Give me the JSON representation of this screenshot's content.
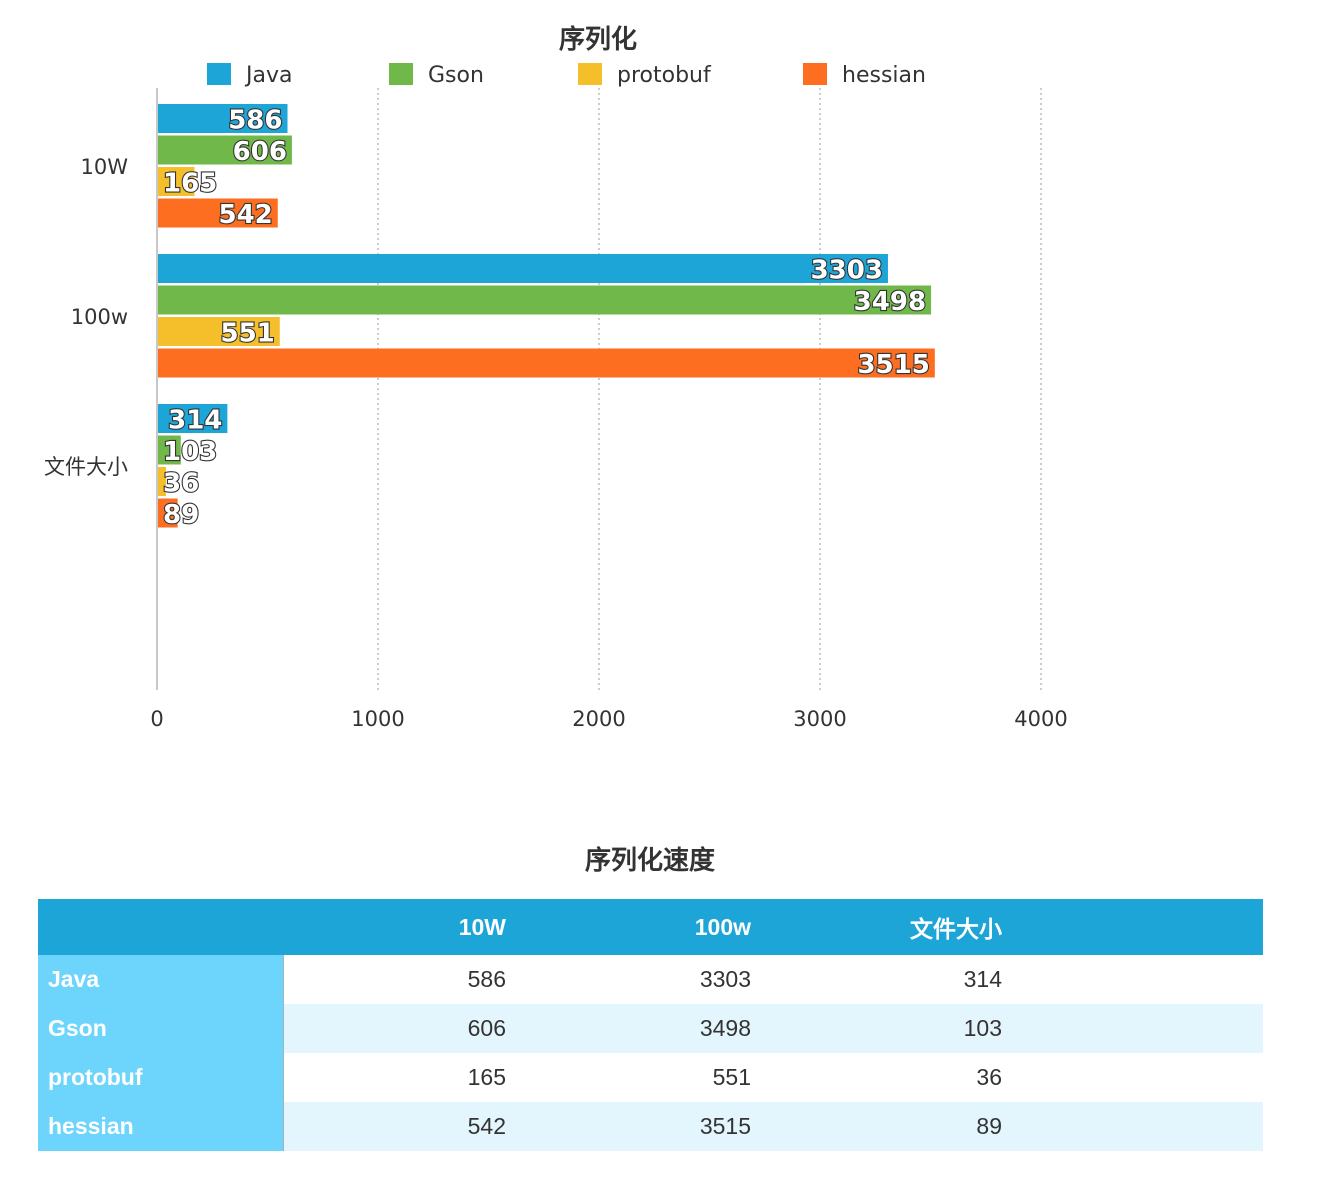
{
  "chart_data": {
    "type": "bar",
    "orientation": "horizontal",
    "title": "序列化",
    "categories": [
      "10W",
      "100w",
      "文件大小"
    ],
    "series": [
      {
        "name": "Java",
        "color": "#1ea5d8",
        "values": [
          586,
          3303,
          314
        ]
      },
      {
        "name": "Gson",
        "color": "#70b84a",
        "values": [
          606,
          3498,
          103
        ]
      },
      {
        "name": "protobuf",
        "color": "#f5bf2c",
        "values": [
          165,
          551,
          36
        ]
      },
      {
        "name": "hessian",
        "color": "#fd6e21",
        "values": [
          542,
          3515,
          89
        ]
      }
    ],
    "xlim": [
      0,
      5000
    ],
    "xticks": [
      0,
      1000,
      2000,
      3000,
      4000
    ],
    "grid": "vertical dotted",
    "legend": "top",
    "data_labels": true
  },
  "table": {
    "title": "序列化速度",
    "header_color": "#1ea5d8",
    "rowhead_color": "#6dd5fc",
    "columns": [
      "",
      "10W",
      "100w",
      "文件大小"
    ],
    "rows": [
      {
        "name": "Java",
        "values": [
          "586",
          "3303",
          "314"
        ]
      },
      {
        "name": "Gson",
        "values": [
          "606",
          "3498",
          "103"
        ]
      },
      {
        "name": "protobuf",
        "values": [
          "165",
          "551",
          "36"
        ]
      },
      {
        "name": "hessian",
        "values": [
          "542",
          "3515",
          "89"
        ]
      }
    ]
  }
}
